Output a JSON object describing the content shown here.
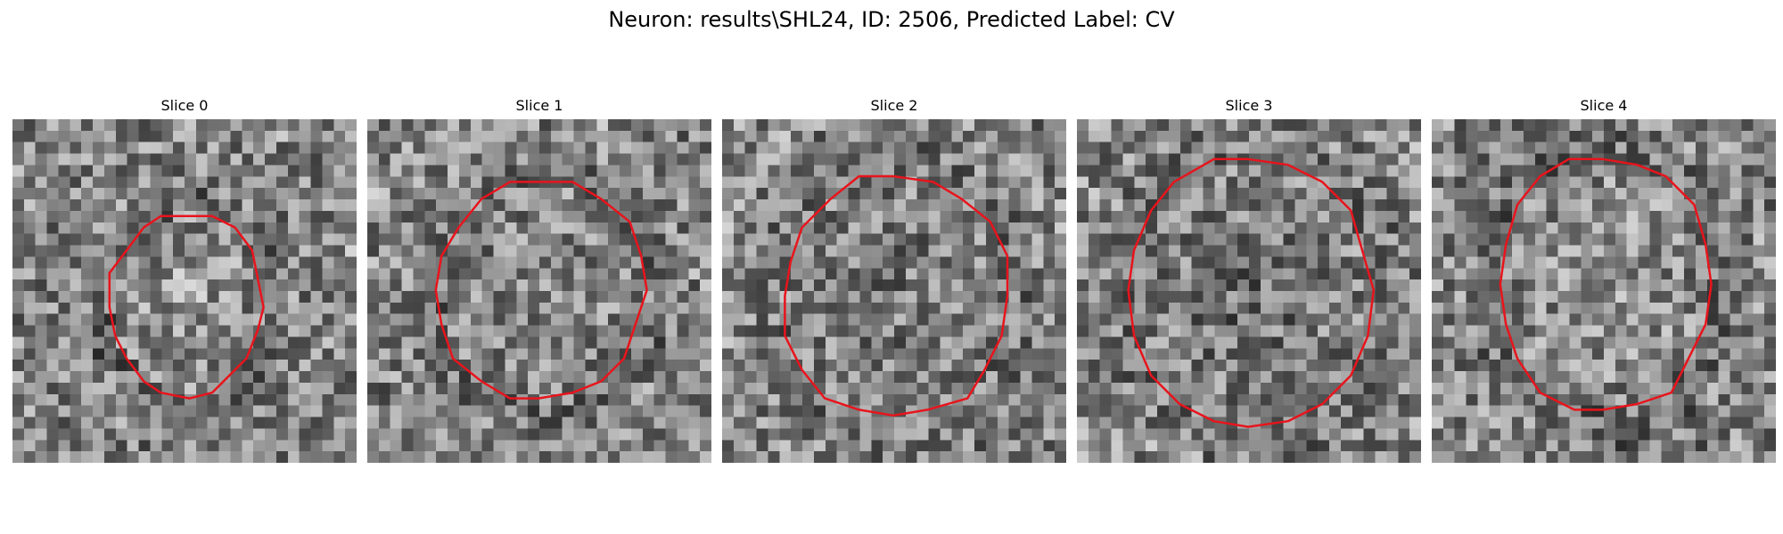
{
  "figure": {
    "title": "Neuron: results\\SHL24, ID: 2506, Predicted Label: CV"
  },
  "colors": {
    "contour": "#e8141c",
    "background": "#ffffff"
  },
  "panels": [
    {
      "title": "Slice 0"
    },
    {
      "title": "Slice 1"
    },
    {
      "title": "Slice 2"
    },
    {
      "title": "Slice 3"
    },
    {
      "title": "Slice 4"
    }
  ]
}
